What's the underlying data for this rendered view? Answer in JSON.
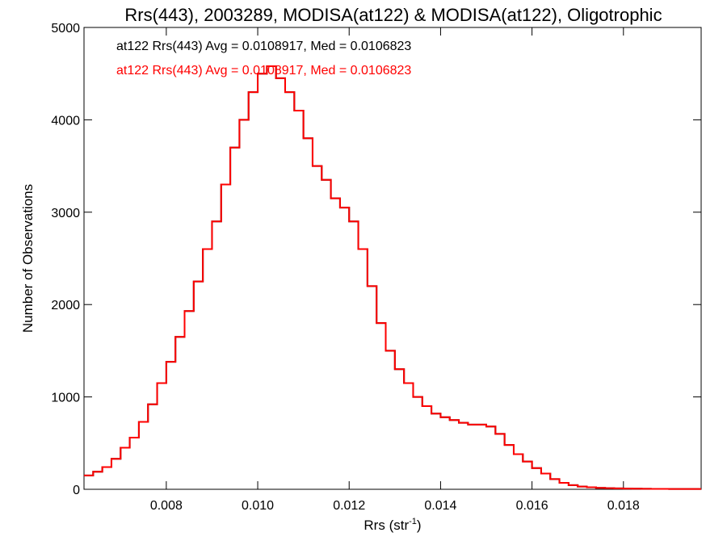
{
  "chart_data": {
    "type": "line",
    "title": "Rrs(443), 2003289, MODISA(at122) & MODISA(at122), Oligotrophic",
    "xlabel": "Rrs (str",
    "xlabel_sup": "-1",
    "xlabel_end": ")",
    "ylabel": "Number of Observations",
    "xlim": [
      0.0062,
      0.0197
    ],
    "ylim": [
      0,
      5000
    ],
    "x_ticks": [
      0.008,
      0.01,
      0.012,
      0.014,
      0.016,
      0.018
    ],
    "x_tick_labels": [
      "0.008",
      "0.010",
      "0.012",
      "0.014",
      "0.016",
      "0.018"
    ],
    "y_ticks": [
      0,
      1000,
      2000,
      3000,
      4000,
      5000
    ],
    "y_tick_labels": [
      "0",
      "1000",
      "2000",
      "3000",
      "4000",
      "5000"
    ],
    "grid": false,
    "annotations": [
      {
        "text": "at122 Rrs(443) Avg = 0.0108917, Med = 0.0106823",
        "color": "#000000"
      },
      {
        "text": "at122 Rrs(443) Avg = 0.0108917, Med = 0.0106823",
        "color": "#ff0000"
      }
    ],
    "series": [
      {
        "color": "#000000",
        "x": [
          0.0062,
          0.0064,
          0.0066,
          0.0068,
          0.007,
          0.0072,
          0.0074,
          0.0076,
          0.0078,
          0.008,
          0.0082,
          0.0084,
          0.0086,
          0.0088,
          0.009,
          0.0092,
          0.0094,
          0.0096,
          0.0098,
          0.01,
          0.0102,
          0.0104,
          0.0106,
          0.0108,
          0.011,
          0.0112,
          0.0114,
          0.0116,
          0.0118,
          0.012,
          0.0122,
          0.0124,
          0.0126,
          0.0128,
          0.013,
          0.0132,
          0.0134,
          0.0136,
          0.0138,
          0.014,
          0.0142,
          0.0144,
          0.0146,
          0.0148,
          0.015,
          0.0152,
          0.0154,
          0.0156,
          0.0158,
          0.016,
          0.0162,
          0.0164,
          0.0166,
          0.0168,
          0.017,
          0.0172,
          0.0174,
          0.0176,
          0.0178,
          0.018,
          0.0182,
          0.0184,
          0.0186,
          0.0188,
          0.019,
          0.0192,
          0.0194,
          0.0196
        ],
        "y": [
          150,
          190,
          240,
          330,
          450,
          560,
          730,
          920,
          1150,
          1380,
          1650,
          1930,
          2250,
          2600,
          2900,
          3300,
          3700,
          4000,
          4300,
          4500,
          4580,
          4450,
          4300,
          4100,
          3800,
          3500,
          3350,
          3150,
          3050,
          2900,
          2600,
          2200,
          1800,
          1500,
          1300,
          1150,
          1000,
          900,
          820,
          780,
          750,
          720,
          700,
          700,
          680,
          600,
          480,
          380,
          300,
          230,
          170,
          110,
          70,
          45,
          30,
          22,
          15,
          12,
          10,
          8,
          6,
          5,
          4,
          4,
          3,
          3,
          3,
          3
        ]
      },
      {
        "color": "#ff0000",
        "x": [
          0.0062,
          0.0064,
          0.0066,
          0.0068,
          0.007,
          0.0072,
          0.0074,
          0.0076,
          0.0078,
          0.008,
          0.0082,
          0.0084,
          0.0086,
          0.0088,
          0.009,
          0.0092,
          0.0094,
          0.0096,
          0.0098,
          0.01,
          0.0102,
          0.0104,
          0.0106,
          0.0108,
          0.011,
          0.0112,
          0.0114,
          0.0116,
          0.0118,
          0.012,
          0.0122,
          0.0124,
          0.0126,
          0.0128,
          0.013,
          0.0132,
          0.0134,
          0.0136,
          0.0138,
          0.014,
          0.0142,
          0.0144,
          0.0146,
          0.0148,
          0.015,
          0.0152,
          0.0154,
          0.0156,
          0.0158,
          0.016,
          0.0162,
          0.0164,
          0.0166,
          0.0168,
          0.017,
          0.0172,
          0.0174,
          0.0176,
          0.0178,
          0.018,
          0.0182,
          0.0184,
          0.0186,
          0.0188,
          0.019,
          0.0192,
          0.0194,
          0.0196
        ],
        "y": [
          150,
          190,
          240,
          330,
          450,
          560,
          730,
          920,
          1150,
          1380,
          1650,
          1930,
          2250,
          2600,
          2900,
          3300,
          3700,
          4000,
          4300,
          4500,
          4580,
          4450,
          4300,
          4100,
          3800,
          3500,
          3350,
          3150,
          3050,
          2900,
          2600,
          2200,
          1800,
          1500,
          1300,
          1150,
          1000,
          900,
          820,
          780,
          750,
          720,
          700,
          700,
          680,
          600,
          480,
          380,
          300,
          230,
          170,
          110,
          70,
          45,
          30,
          22,
          15,
          12,
          10,
          8,
          6,
          5,
          4,
          4,
          3,
          3,
          3,
          3
        ]
      }
    ]
  }
}
